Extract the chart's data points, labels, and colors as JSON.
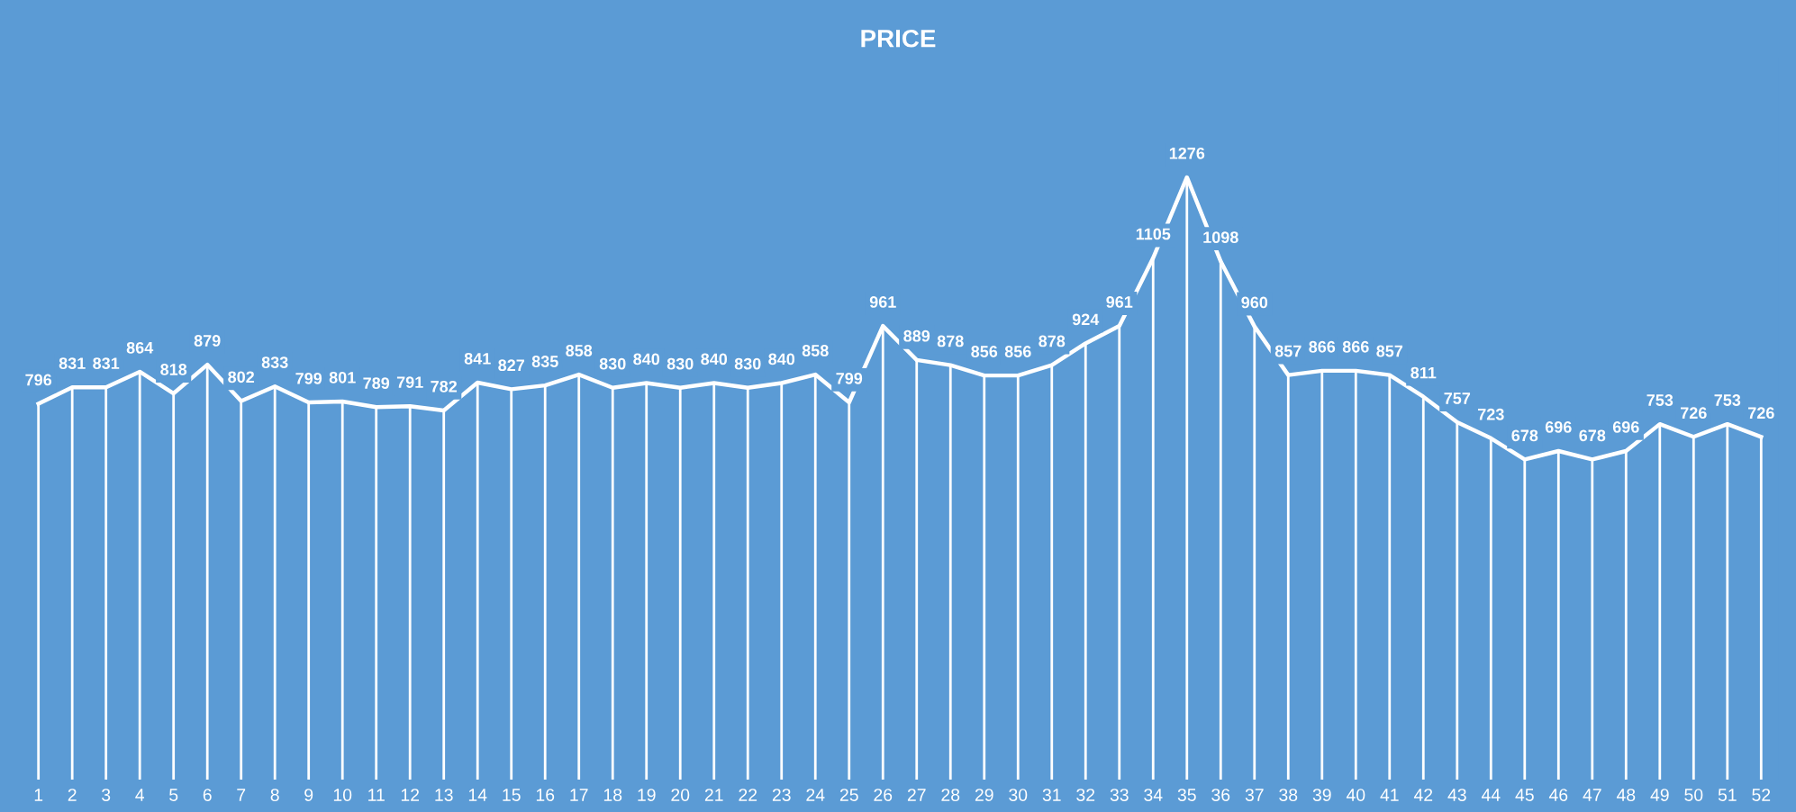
{
  "chart_data": {
    "type": "line",
    "title": "PRICE",
    "categories": [
      "1",
      "2",
      "3",
      "4",
      "5",
      "6",
      "7",
      "8",
      "9",
      "10",
      "11",
      "12",
      "13",
      "14",
      "15",
      "16",
      "17",
      "18",
      "19",
      "20",
      "21",
      "22",
      "23",
      "24",
      "25",
      "26",
      "27",
      "28",
      "29",
      "30",
      "31",
      "32",
      "33",
      "34",
      "35",
      "36",
      "37",
      "38",
      "39",
      "40",
      "41",
      "42",
      "43",
      "44",
      "45",
      "46",
      "47",
      "48",
      "49",
      "50",
      "51",
      "52"
    ],
    "series": [
      {
        "color": "#ffffff",
        "values": [
          796,
          831,
          831,
          864,
          818,
          879,
          802,
          833,
          799,
          801,
          789,
          791,
          782,
          841,
          827,
          835,
          858,
          830,
          840,
          830,
          840,
          830,
          840,
          858,
          799,
          961,
          889,
          878,
          856,
          856,
          878,
          924,
          961,
          1105,
          1276,
          1098,
          960,
          857,
          866,
          866,
          857,
          811,
          757,
          723,
          678,
          696,
          678,
          696,
          753,
          726,
          753,
          726
        ]
      }
    ],
    "data_labels": true,
    "grid": "x",
    "legend": false,
    "marker": "none",
    "line_style": "solid",
    "tick_labels": "x"
  }
}
